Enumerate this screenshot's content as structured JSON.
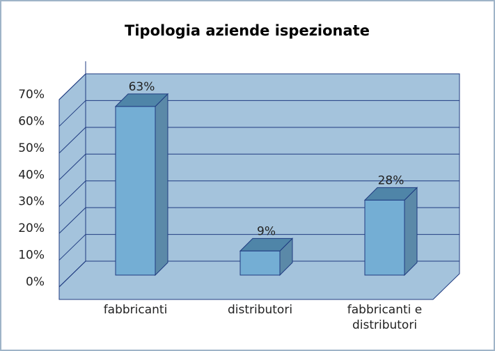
{
  "chart_data": {
    "type": "bar3d",
    "title": "Tipologia aziende ispezionate",
    "categories": [
      "fabbricanti",
      "distributori",
      "fabbricanti e distributori"
    ],
    "values": [
      63,
      9,
      28
    ],
    "value_labels": [
      "63%",
      "9%",
      "28%"
    ],
    "color": "#74aed4",
    "ylim": [
      0,
      70
    ],
    "yticks": [
      {
        "value": 0,
        "label": "0%"
      },
      {
        "value": 10,
        "label": "10%"
      },
      {
        "value": 20,
        "label": "20%"
      },
      {
        "value": 30,
        "label": "30%"
      },
      {
        "value": 40,
        "label": "40%"
      },
      {
        "value": 50,
        "label": "50%"
      },
      {
        "value": 60,
        "label": "60%"
      },
      {
        "value": 70,
        "label": "70%"
      }
    ],
    "grid": true
  }
}
